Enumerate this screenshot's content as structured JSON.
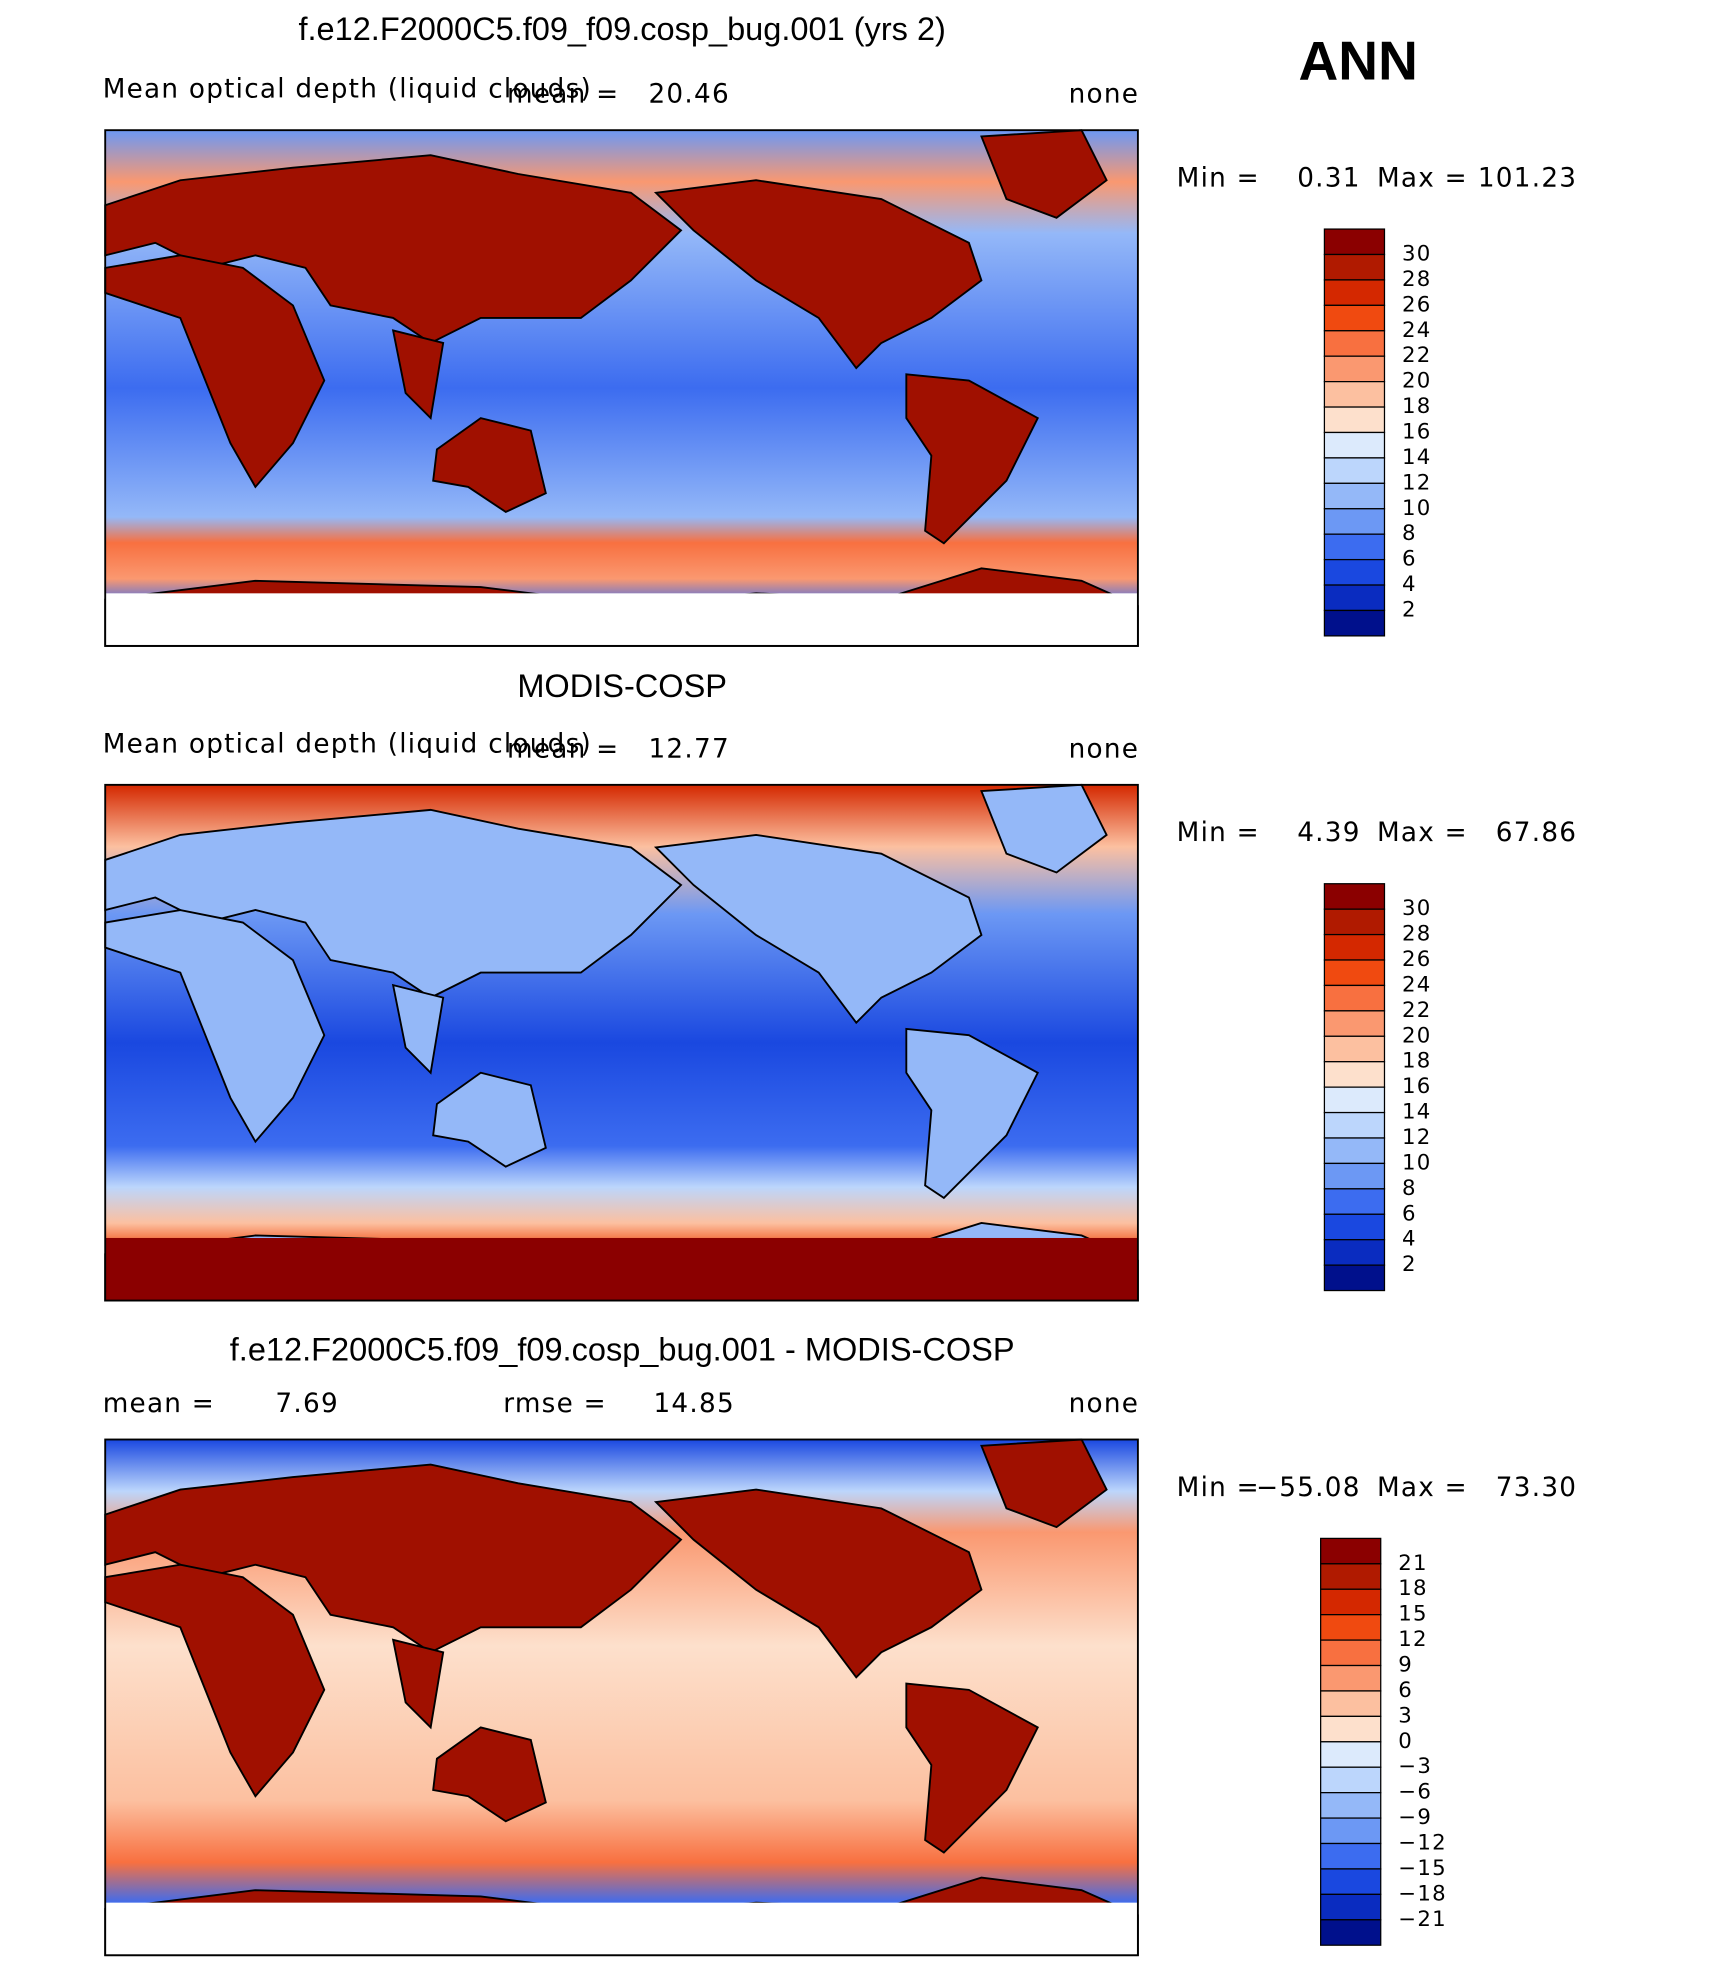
{
  "season": "ANN",
  "panels": [
    {
      "title": "f.e12.F2000C5.f09_f09.cosp_bug.001 (yrs 2)",
      "left": "Mean optical depth (liquid clouds)",
      "mean_label": "mean =",
      "mean": "20.46",
      "right": "none",
      "min_label": "Min =",
      "min": "0.31",
      "max_label": "Max =",
      "max": "101.23",
      "levels": [
        30,
        28,
        26,
        24,
        22,
        20,
        18,
        16,
        14,
        12,
        10,
        8,
        6,
        4,
        2
      ],
      "colors": [
        "#8b0000",
        "#b01a00",
        "#d42800",
        "#f04a10",
        "#f87040",
        "#fa9870",
        "#fcc0a0",
        "#fde0cc",
        "#dceafc",
        "#bcd6fc",
        "#94b8f8",
        "#6c98f4",
        "#3c6cf0",
        "#1a48e0",
        "#0a2cc0",
        "#00108c"
      ]
    },
    {
      "title": "MODIS-COSP",
      "left": "Mean optical depth (liquid clouds)",
      "mean_label": "mean =",
      "mean": "12.77",
      "right": "none",
      "min_label": "Min =",
      "min": "4.39",
      "max_label": "Max =",
      "max": "67.86",
      "levels": [
        30,
        28,
        26,
        24,
        22,
        20,
        18,
        16,
        14,
        12,
        10,
        8,
        6,
        4,
        2
      ],
      "colors": [
        "#8b0000",
        "#b01a00",
        "#d42800",
        "#f04a10",
        "#f87040",
        "#fa9870",
        "#fcc0a0",
        "#fde0cc",
        "#dceafc",
        "#bcd6fc",
        "#94b8f8",
        "#6c98f4",
        "#3c6cf0",
        "#1a48e0",
        "#0a2cc0",
        "#00108c"
      ]
    },
    {
      "title": "f.e12.F2000C5.f09_f09.cosp_bug.001 - MODIS-COSP",
      "mean_label": "mean =",
      "mean": "7.69",
      "rmse_label": "rmse =",
      "rmse": "14.85",
      "right": "none",
      "min_label": "Min =",
      "min": "−55.08",
      "max_label": "Max =",
      "max": "73.30",
      "levels": [
        21,
        18,
        15,
        12,
        9,
        6,
        3,
        0,
        {
          "value": -3,
          "label": "−3"
        },
        {
          "value": -6,
          "label": "−6"
        },
        {
          "value": -9,
          "label": "−9"
        },
        {
          "value": -12,
          "label": "−12"
        },
        {
          "value": -15,
          "label": "−15"
        },
        {
          "value": -18,
          "label": "−18"
        },
        {
          "value": -21,
          "label": "−21"
        }
      ],
      "colors": [
        "#8b0000",
        "#b01a00",
        "#d42800",
        "#f04a10",
        "#f87040",
        "#fa9870",
        "#fcc0a0",
        "#fde0cc",
        "#dceafc",
        "#bcd6fc",
        "#94b8f8",
        "#6c98f4",
        "#3c6cf0",
        "#1a48e0",
        "#0a2cc0",
        "#00108c"
      ]
    }
  ]
}
